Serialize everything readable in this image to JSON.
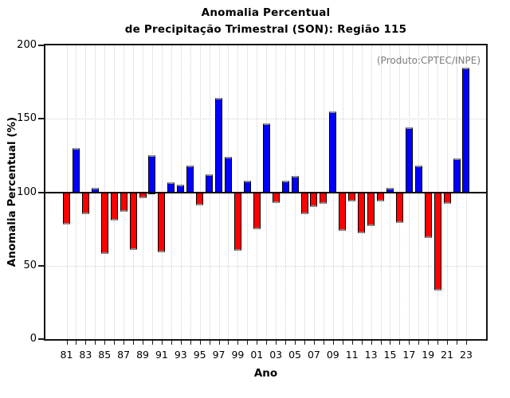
{
  "title": {
    "line1": "Anomalia Percentual",
    "line2": "de Precipitação Trimestral (SON): Região 115"
  },
  "source_note": "(Produto:CPTEC/INPE)",
  "axes": {
    "x_label": "Ano",
    "y_label": "Anomalia Percentual (%)"
  },
  "colors": {
    "positive_bar": "#0000ff",
    "negative_bar": "#ff0000",
    "baseline": "#000000",
    "grid": "#cfcfcf",
    "note_text": "#7d7d7d"
  },
  "chart_data": {
    "type": "bar",
    "title": "Anomalia Percentual de Precipitação Trimestral (SON): Região 115",
    "xlabel": "Ano",
    "ylabel": "Anomalia Percentual (%)",
    "ylim": [
      0,
      200
    ],
    "yticks": [
      0,
      50,
      100,
      150,
      200
    ],
    "baseline_value": 100,
    "horizontal_gridlines": [
      50,
      150
    ],
    "grid": "dotted, vertical line per year",
    "legend_position": "none",
    "annotation": "(Produto:CPTEC/INPE)",
    "color_rule": "value >= 100 blue, value < 100 red; bars anchored at 100",
    "x": [
      1981,
      1982,
      1983,
      1984,
      1985,
      1986,
      1987,
      1988,
      1989,
      1990,
      1991,
      1992,
      1993,
      1994,
      1995,
      1996,
      1997,
      1998,
      1999,
      2000,
      2001,
      2002,
      2003,
      2004,
      2005,
      2006,
      2007,
      2008,
      2009,
      2010,
      2011,
      2012,
      2013,
      2014,
      2015,
      2016,
      2017,
      2018,
      2019,
      2020,
      2021,
      2022,
      2023
    ],
    "x_tick_labels": [
      "81",
      "83",
      "85",
      "87",
      "89",
      "91",
      "93",
      "95",
      "97",
      "99",
      "01",
      "03",
      "05",
      "07",
      "09",
      "11",
      "13",
      "15",
      "17",
      "19",
      "21",
      "23"
    ],
    "values": [
      79,
      130,
      86,
      103,
      59,
      82,
      88,
      62,
      97,
      125,
      60,
      107,
      105,
      118,
      92,
      112,
      164,
      124,
      61,
      108,
      76,
      147,
      94,
      108,
      111,
      86,
      91,
      93,
      155,
      75,
      95,
      73,
      78,
      95,
      103,
      80,
      144,
      118,
      70,
      34,
      93,
      123,
      185
    ]
  }
}
